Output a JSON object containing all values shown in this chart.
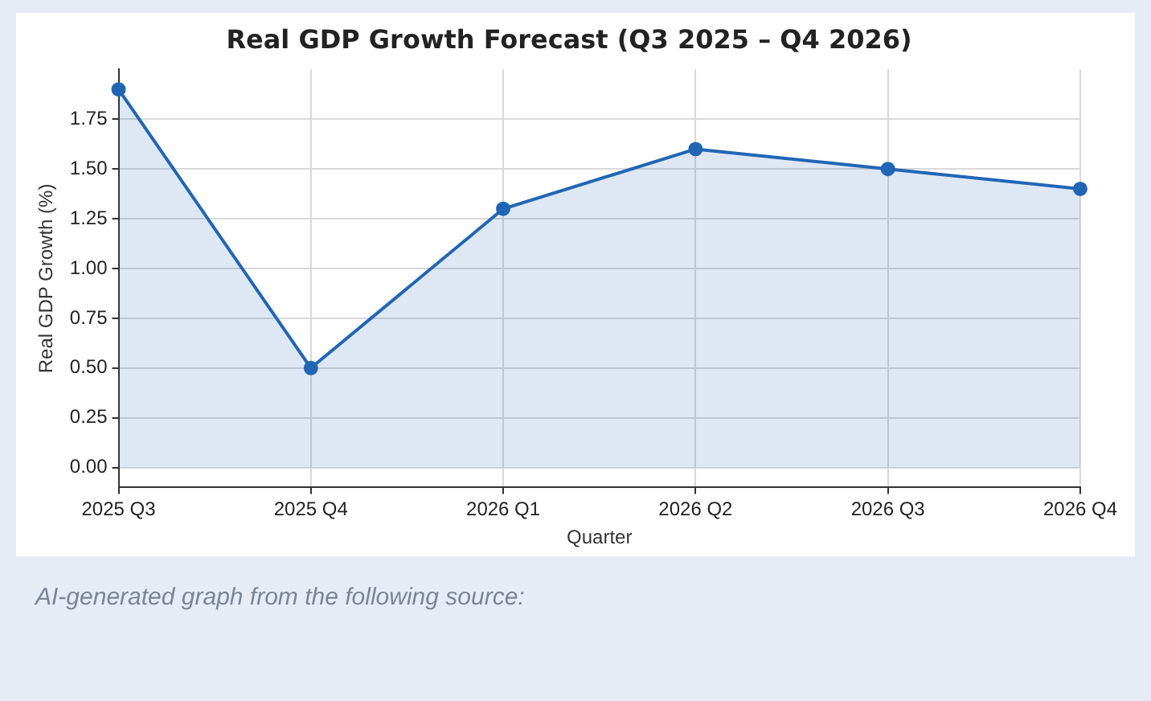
{
  "chart_data": {
    "type": "area",
    "title": "Real GDP Growth Forecast (Q3 2025 – Q4 2026)",
    "xlabel": "Quarter",
    "ylabel": "Real GDP Growth (%)",
    "categories": [
      "2025 Q3",
      "2025 Q4",
      "2026 Q1",
      "2026 Q2",
      "2026 Q3",
      "2026 Q4"
    ],
    "series": [
      {
        "color": "#2166b5",
        "values": [
          1.9,
          0.5,
          1.3,
          1.6,
          1.5,
          1.4
        ]
      }
    ],
    "ylim": [
      -0.1,
      2.0
    ],
    "yticks": [
      {
        "value": 0,
        "label": "0.00"
      },
      {
        "value": 0.25,
        "label": "0.25"
      },
      {
        "value": 0.5,
        "label": "0.50"
      },
      {
        "value": 0.75,
        "label": "0.75"
      },
      {
        "value": 1,
        "label": "1.00"
      },
      {
        "value": 1.25,
        "label": "1.25"
      },
      {
        "value": 1.5,
        "label": "1.50"
      },
      {
        "value": 1.75,
        "label": "1.75"
      }
    ],
    "grid": true,
    "legend": false,
    "marker": "circle",
    "line_style": "solid",
    "annotations": [
      "AI-generated graph from the following source:"
    ]
  }
}
